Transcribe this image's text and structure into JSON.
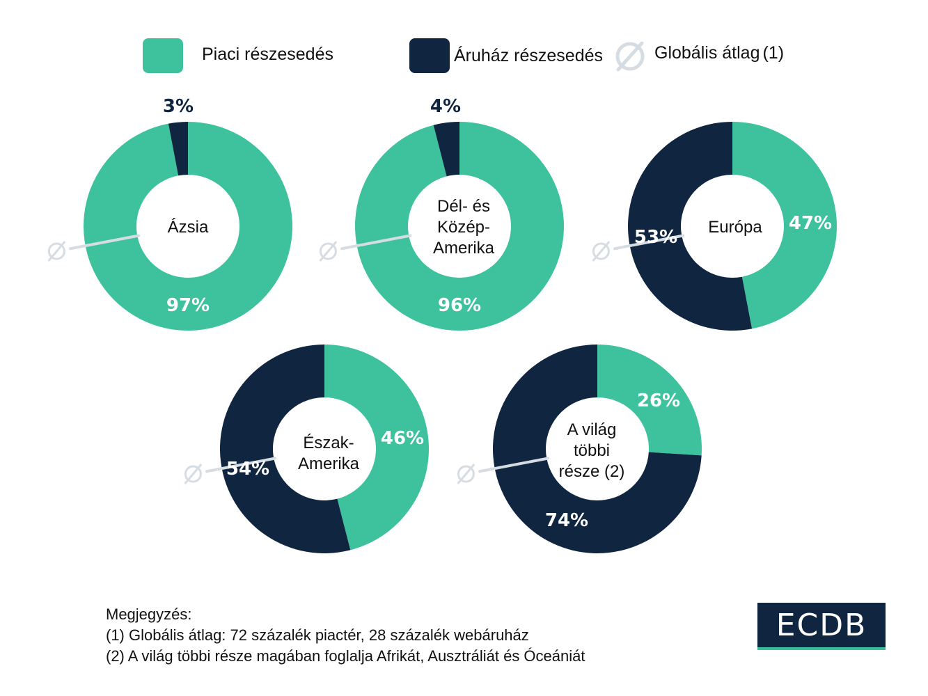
{
  "colors": {
    "market": "#3ec29e",
    "store": "#0f2540",
    "avg": "#d6dde2",
    "background": "#ffffff"
  },
  "legend": {
    "market_label": "Piaci részesedés",
    "store_label": "Áruház részesedés",
    "avg_label": "Globális átlag",
    "avg_note": "(1)",
    "avg_icon": "empty-set-icon"
  },
  "chart_data": {
    "type": "pie",
    "variant": "donut",
    "global_average": {
      "market": 72,
      "store": 28
    },
    "series": [
      {
        "label": [
          "Ázsia"
        ],
        "market": 97,
        "store": 3
      },
      {
        "label": [
          "Dél- és",
          "Közép-",
          "Amerika"
        ],
        "market": 96,
        "store": 4
      },
      {
        "label": [
          "Európa"
        ],
        "market": 47,
        "store": 53
      },
      {
        "label": [
          "Észak-",
          "Amerika"
        ],
        "market": 46,
        "store": 54
      },
      {
        "label": [
          "A világ",
          "többi",
          "része (2)"
        ],
        "market": 26,
        "store": 74
      }
    ]
  },
  "notes": {
    "heading": "Megjegyzés:",
    "note1": "(1) Globális átlag: 72 százalék piactér, 28 százalék webáruház",
    "note2": "(2) A világ többi része magában foglalja Afrikát, Ausztráliát és Óceániát"
  },
  "logo": {
    "text": "ECDB"
  }
}
